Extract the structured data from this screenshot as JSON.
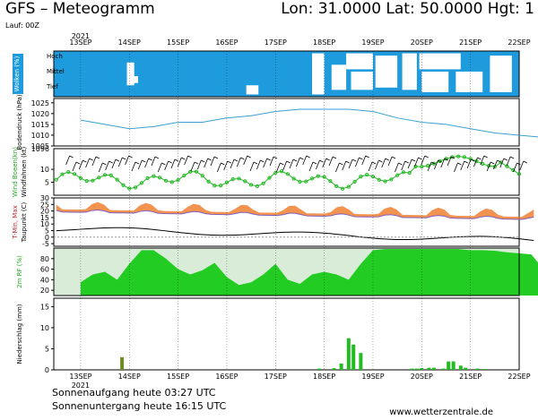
{
  "header": {
    "title": "GFS – Meteogramm",
    "coords": "Lon: 31.0000 Lat: 50.0000 Hgt: 1",
    "run": "Lauf: 00Z"
  },
  "footer": {
    "sunrise": "Sonnenaufgang heute 03:27 UTC",
    "sunset": "Sonnenuntergang heute 16:15 UTC",
    "site": "www.wetterzentrale.de"
  },
  "colors": {
    "cloud": "#1e9bdc",
    "pressure": "#3a9fd0",
    "wind_dots": "#22b822",
    "tmax": "#f08030",
    "tmin": "#f0c850",
    "dewpoint": "#000000",
    "rh": "#22cc22",
    "precip": "#22bb22"
  },
  "chart_data": [
    {
      "type": "heatmap",
      "panel": "wolken",
      "ylabel": "Wolken (%)",
      "levels": [
        "Hoch",
        "Mittel",
        "Tief"
      ],
      "year_label": "2021",
      "date_labels": [
        "13SEP",
        "14SEP",
        "15SEP",
        "16SEP",
        "17SEP",
        "18SEP",
        "19SEP",
        "20SEP",
        "21SEP",
        "22SEP"
      ]
    },
    {
      "type": "line",
      "panel": "bodendruck",
      "ylabel": "Bodendruck (hPa)",
      "yticks": [
        1005,
        1010,
        1015,
        1020,
        1025
      ],
      "ylim": [
        1005,
        1027
      ],
      "x": [
        0,
        0.5,
        1,
        1.5,
        2,
        2.5,
        3,
        3.5,
        4,
        4.5,
        5,
        5.5,
        6,
        6.5,
        7,
        7.5,
        8,
        8.5,
        9,
        9.5,
        10
      ],
      "y": [
        1017,
        1015,
        1013,
        1014,
        1016,
        1016,
        1018,
        1019,
        1021,
        1022,
        1022,
        1022,
        1021,
        1018,
        1016,
        1015,
        1013,
        1011,
        1010,
        1009,
        1008
      ]
    },
    {
      "type": "line",
      "panel": "wind",
      "ylabel": "Wind Boeen(kn)",
      "ylabel2": "Windfahnen (kt)",
      "yticks": [
        5,
        10
      ],
      "ytop_label": "1096",
      "ylim": [
        0,
        18
      ]
    },
    {
      "type": "area",
      "panel": "temperatur",
      "ylabel": "T-Min, Max",
      "ylabel2": "Taupunkt (C)",
      "yticks": [
        -5,
        0,
        5,
        10,
        15,
        20,
        25,
        30
      ],
      "ylim": [
        -7,
        30
      ]
    },
    {
      "type": "area",
      "panel": "rh",
      "ylabel": "2m RF (%)",
      "yticks": [
        20,
        40,
        60,
        80
      ],
      "ylim": [
        10,
        100
      ],
      "x": [
        0,
        0.25,
        0.5,
        0.75,
        1,
        1.25,
        1.5,
        1.75,
        2,
        2.25,
        2.5,
        2.75,
        3,
        3.25,
        3.5,
        3.75,
        4,
        4.25,
        4.5,
        4.75,
        5,
        5.25,
        5.5,
        5.75,
        6,
        6.25,
        6.5,
        6.75,
        7,
        7.25,
        7.5,
        7.75,
        8,
        8.25,
        8.5,
        8.75,
        9,
        9.25,
        9.5,
        9.75,
        10
      ],
      "y": [
        35,
        50,
        55,
        40,
        70,
        96,
        96,
        80,
        60,
        50,
        58,
        72,
        45,
        30,
        35,
        50,
        70,
        40,
        32,
        50,
        55,
        50,
        40,
        70,
        96,
        98,
        98,
        98,
        98,
        98,
        98,
        98,
        96,
        96,
        95,
        92,
        90,
        88,
        60,
        60,
        70
      ]
    },
    {
      "type": "bar",
      "panel": "niederschlag",
      "ylabel": "Niederschlag (mm)",
      "yticks": [
        0,
        5,
        10,
        15
      ],
      "ylim": [
        0,
        17
      ],
      "x": [
        0.85,
        4.9,
        5.2,
        5.35,
        5.5,
        5.6,
        5.75,
        6.8,
        6.9,
        7.0,
        7.15,
        7.25,
        7.45,
        7.55,
        7.65,
        7.8,
        7.9,
        8.15,
        8.3
      ],
      "values": [
        3,
        0.3,
        0.4,
        1.5,
        7.5,
        6,
        4,
        0.3,
        0.3,
        0.4,
        0.5,
        0.5,
        0.3,
        2,
        2,
        1,
        0.5,
        0.3,
        0.2
      ]
    }
  ]
}
